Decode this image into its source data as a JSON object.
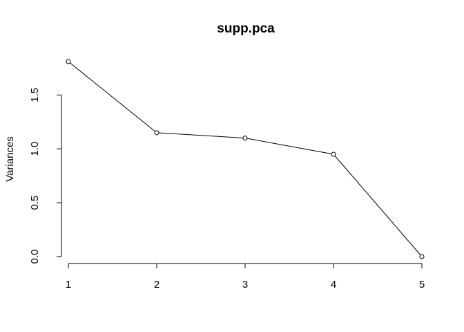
{
  "chart_data": {
    "type": "line",
    "title": "supp.pca",
    "xlabel": "",
    "ylabel": "Variances",
    "x": [
      1,
      2,
      3,
      4,
      5
    ],
    "x_tick_labels": [
      "1",
      "2",
      "3",
      "4",
      "5"
    ],
    "y_ticks": [
      0.0,
      0.5,
      1.0,
      1.5
    ],
    "y_tick_labels": [
      "0.0",
      "0.5",
      "1.0",
      "1.5"
    ],
    "series": [
      {
        "values": [
          1.81,
          1.15,
          1.1,
          0.95,
          0.0
        ]
      }
    ],
    "xlim": [
      1,
      5
    ],
    "ylim": [
      0,
      1.81
    ],
    "grid": false,
    "marker": "open-circle"
  }
}
